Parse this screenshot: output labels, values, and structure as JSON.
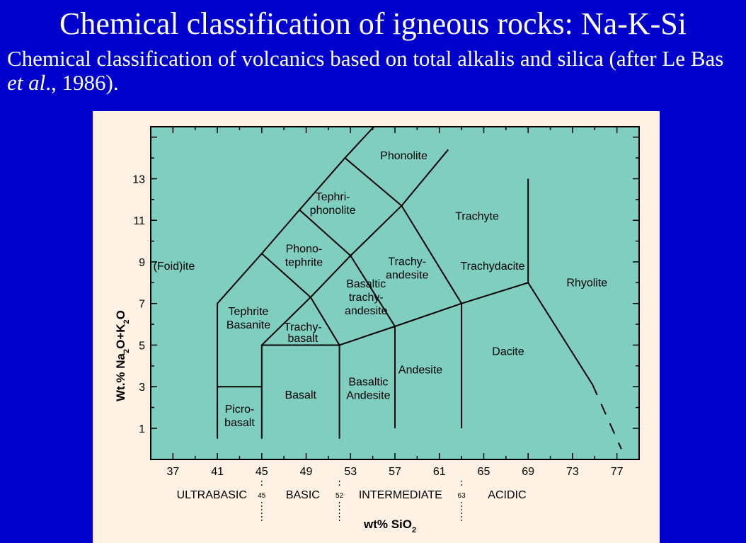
{
  "title": "Chemical classification of igneous rocks: Na-K-Si",
  "subtitle": {
    "before": "Chemical classification of volcanics based on total alkalis and silica (after Le Bas ",
    "italic": "et al",
    "after": "., 1986)."
  },
  "diagram": {
    "x_axis_title": "wt% SiO",
    "x_axis_subscript": "2",
    "y_axis_title_parts": [
      "Wt.% Na",
      "2",
      "O+K",
      "2",
      "O"
    ],
    "x_range": [
      35,
      79
    ],
    "y_range": [
      -0.5,
      15.5
    ],
    "x_ticks": [
      "37",
      "41",
      "45",
      "49",
      "53",
      "57",
      "61",
      "65",
      "69",
      "73",
      "77"
    ],
    "y_ticks": [
      "1",
      "3",
      "5",
      "7",
      "9",
      "11",
      "13"
    ],
    "categories": [
      {
        "label": "ULTRABASIC",
        "x": 40.5
      },
      {
        "label": "BASIC",
        "x": 48.7
      },
      {
        "label": "INTERMEDIATE",
        "x": 57.5
      },
      {
        "label": "ACIDIC",
        "x": 67.1
      }
    ],
    "boundaries_text": [
      {
        "label": "45",
        "x": 45
      },
      {
        "label": "52",
        "x": 52
      },
      {
        "label": "63",
        "x": 63
      }
    ],
    "fields": [
      {
        "name": "Phonolite",
        "lines": [
          "Phonolite"
        ],
        "x": 57.8,
        "y": 14.1
      },
      {
        "name": "Tephri-phonolite",
        "lines": [
          "Tephri-",
          "phonolite"
        ],
        "x": 51.4,
        "y": 11.8
      },
      {
        "name": "Trachyte",
        "lines": [
          "Trachyte"
        ],
        "x": 64.4,
        "y": 11.2
      },
      {
        "name": "Phono-tephrite",
        "lines": [
          "Phono-",
          "tephrite"
        ],
        "x": 48.8,
        "y": 9.3
      },
      {
        "name": "(Foid)ite",
        "lines": [
          "(Foid)ite"
        ],
        "x": 37.1,
        "y": 8.8
      },
      {
        "name": "Trachy-andesite",
        "lines": [
          "Trachy-",
          "andesite"
        ],
        "x": 58.1,
        "y": 8.7
      },
      {
        "name": "Trachydacite",
        "lines": [
          "Trachydacite"
        ],
        "x": 65.8,
        "y": 8.8
      },
      {
        "name": "Rhyolite",
        "lines": [
          "Rhyolite"
        ],
        "x": 74.3,
        "y": 8.0
      },
      {
        "name": "Basaltic trachy-andesite",
        "lines": [
          "Basaltic",
          "trachy-",
          "andesite"
        ],
        "x": 54.4,
        "y": 7.3
      },
      {
        "name": "Tephrite Basanite",
        "lines": [
          "Tephrite",
          "Basanite"
        ],
        "x": 43.8,
        "y": 6.3
      },
      {
        "name": "Trachy-basalt",
        "lines": [
          "Trachy-",
          "basalt"
        ],
        "x": 48.7,
        "y": 5.6
      },
      {
        "name": "Dacite",
        "lines": [
          "Dacite"
        ],
        "x": 67.2,
        "y": 4.7
      },
      {
        "name": "Andesite",
        "lines": [
          "Andesite"
        ],
        "x": 59.3,
        "y": 3.8
      },
      {
        "name": "Basaltic Andesite",
        "lines": [
          "Basaltic",
          "Andesite"
        ],
        "x": 54.6,
        "y": 2.9
      },
      {
        "name": "Basalt",
        "lines": [
          "Basalt"
        ],
        "x": 48.5,
        "y": 2.6
      },
      {
        "name": "Picro-basalt",
        "lines": [
          "Picro-",
          "basalt"
        ],
        "x": 43.0,
        "y": 1.6
      }
    ],
    "field_lines": [
      [
        [
          41,
          0.5
        ],
        [
          41,
          7
        ],
        [
          45,
          9.4
        ],
        [
          48.4,
          11.5
        ],
        [
          52.5,
          14
        ],
        [
          55.1,
          15.5
        ]
      ],
      [
        [
          41,
          3
        ],
        [
          45,
          3
        ]
      ],
      [
        [
          45,
          0.5
        ],
        [
          45,
          5
        ],
        [
          49.4,
          7.3
        ],
        [
          53,
          9.3
        ],
        [
          57.6,
          11.7
        ],
        [
          61.8,
          14.4
        ]
      ],
      [
        [
          45,
          5
        ],
        [
          52,
          5
        ],
        [
          57,
          5.9
        ],
        [
          63,
          7
        ],
        [
          69,
          8
        ],
        [
          74.8,
          3.1
        ]
      ],
      [
        [
          52,
          0.5
        ],
        [
          52,
          5
        ]
      ],
      [
        [
          57,
          1
        ],
        [
          57,
          5.9
        ]
      ],
      [
        [
          63,
          1
        ],
        [
          63,
          7
        ]
      ],
      [
        [
          69,
          8
        ],
        [
          69,
          13
        ]
      ],
      [
        [
          45,
          9.4
        ],
        [
          49.4,
          7.3
        ],
        [
          52,
          5
        ]
      ],
      [
        [
          48.4,
          11.5
        ],
        [
          53,
          9.3
        ],
        [
          57,
          5.9
        ]
      ],
      [
        [
          52.5,
          14
        ],
        [
          57.6,
          11.7
        ],
        [
          63,
          7
        ]
      ]
    ],
    "dashed_line": [
      [
        74.8,
        3.1
      ],
      [
        77.4,
        0
      ]
    ],
    "colors": {
      "field_fill": "#7fcebf",
      "panel": "#fff1e4",
      "background": "#0000cc",
      "text": "#ffffff"
    }
  }
}
